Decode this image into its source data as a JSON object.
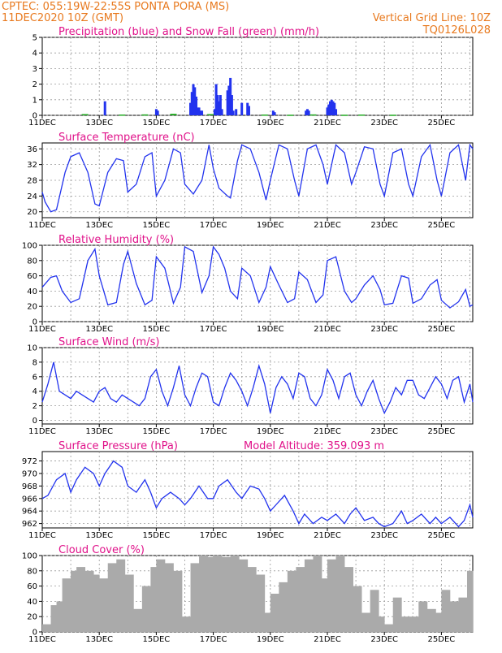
{
  "header": {
    "line1_left": "CPTEC:   055:19W-22:55S   PONTA PORA (MS)",
    "line2_left": "11DEC2020  10Z  (GMT)",
    "line1_right": "Vertical Grid Line: 10Z",
    "line2_right": "TQ0126L028"
  },
  "colors": {
    "series": "#2233ee",
    "snow": "#22aa22",
    "cloud": "#aaaaaa",
    "header": "#e8791e",
    "title": "#e0128a"
  },
  "x_axis": {
    "labels": [
      "11DEC",
      "13DEC",
      "15DEC",
      "17DEC",
      "19DEC",
      "21DEC",
      "23DEC",
      "25DEC"
    ],
    "label_days": [
      0,
      2,
      4,
      6,
      8,
      10,
      12,
      14
    ],
    "range_days": [
      0,
      15.1
    ]
  },
  "chart_data": [
    {
      "id": "precip",
      "type": "bar",
      "title": "Precipitation (blue) and Snow Fall (green) (mm/h)",
      "ylim": [
        0,
        5
      ],
      "yticks": [
        0,
        1,
        2,
        3,
        4,
        5
      ],
      "series": [
        {
          "name": "Precipitation",
          "x": [
            2.2,
            4.0,
            4.05,
            5.2,
            5.25,
            5.3,
            5.35,
            5.4,
            5.45,
            5.5,
            5.55,
            5.6,
            6.05,
            6.1,
            6.15,
            6.2,
            6.25,
            6.3,
            6.5,
            6.55,
            6.6,
            6.65,
            6.7,
            6.8,
            7.0,
            7.2,
            7.25,
            8.1,
            8.15,
            9.25,
            9.3,
            9.35,
            10.0,
            10.05,
            10.1,
            10.15,
            10.2,
            10.25,
            10.3
          ],
          "values": [
            0.9,
            0.4,
            0.3,
            0.8,
            1.5,
            2.0,
            1.8,
            1.2,
            0.5,
            0.5,
            0.3,
            0.3,
            0.4,
            2.0,
            1.3,
            0.9,
            1.3,
            0.4,
            1.6,
            1.9,
            2.4,
            1.3,
            0.3,
            0.4,
            0.8,
            0.8,
            0.6,
            0.3,
            0.2,
            0.3,
            0.4,
            0.3,
            0.5,
            0.7,
            0.9,
            1.0,
            0.9,
            0.8,
            0.4
          ]
        },
        {
          "name": "Snow Fall",
          "x": [
            1.5,
            2.8,
            3.6,
            4.6,
            5.9,
            7.8,
            8.7,
            9.5,
            10.6,
            11.2,
            12.3
          ],
          "values": [
            0.08,
            0.05,
            0.06,
            0.1,
            0.08,
            0.05,
            0.04,
            0.06,
            0.04,
            0.05,
            0.04
          ]
        }
      ]
    },
    {
      "id": "temp",
      "type": "line",
      "title": "Surface Temperature (nC)",
      "ylim": [
        18.5,
        37.5
      ],
      "yticks": [
        20,
        24,
        28,
        32,
        36
      ],
      "series": [
        {
          "name": "Temperature",
          "x": [
            0,
            0.1,
            0.3,
            0.5,
            0.8,
            1.0,
            1.3,
            1.6,
            1.85,
            2.0,
            2.3,
            2.6,
            2.85,
            3.0,
            3.3,
            3.6,
            3.85,
            4.0,
            4.3,
            4.6,
            4.85,
            5.0,
            5.3,
            5.6,
            5.85,
            6.0,
            6.2,
            6.5,
            6.6,
            6.85,
            7.0,
            7.3,
            7.6,
            7.85,
            8.0,
            8.3,
            8.6,
            8.85,
            9.0,
            9.3,
            9.6,
            9.85,
            10.0,
            10.3,
            10.6,
            10.85,
            11.0,
            11.3,
            11.6,
            11.85,
            12.0,
            12.3,
            12.6,
            12.85,
            13.0,
            13.3,
            13.6,
            13.85,
            14.0,
            14.3,
            14.6,
            14.85,
            15.0,
            15.1
          ],
          "values": [
            25,
            22.5,
            20,
            20.5,
            30,
            34,
            35,
            30,
            22,
            21.5,
            30,
            33.5,
            33,
            25,
            27,
            34,
            35,
            24,
            28,
            36,
            35,
            27,
            24.5,
            28,
            37,
            31,
            26,
            24,
            23.5,
            33,
            37,
            36,
            30,
            23,
            28,
            37,
            36,
            28,
            24,
            36,
            37,
            32,
            27,
            37,
            35,
            27,
            30,
            36.5,
            36,
            27,
            24,
            35,
            36,
            27,
            24,
            34,
            37,
            28,
            24,
            35,
            37,
            28,
            37,
            36
          ]
        }
      ]
    },
    {
      "id": "rh",
      "type": "line",
      "title": "Relative Humidity (%)",
      "ylim": [
        0,
        100
      ],
      "yticks": [
        0,
        20,
        40,
        60,
        80,
        100
      ],
      "series": [
        {
          "name": "Relative Humidity",
          "x": [
            0,
            0.3,
            0.5,
            0.7,
            1.0,
            1.3,
            1.6,
            1.85,
            2.0,
            2.3,
            2.6,
            2.85,
            3.0,
            3.3,
            3.6,
            3.85,
            4.0,
            4.3,
            4.6,
            4.85,
            5.0,
            5.3,
            5.6,
            5.85,
            6.0,
            6.2,
            6.4,
            6.6,
            6.85,
            7.0,
            7.3,
            7.6,
            7.85,
            8.0,
            8.3,
            8.6,
            8.85,
            9.0,
            9.3,
            9.6,
            9.85,
            10.0,
            10.3,
            10.6,
            10.85,
            11.0,
            11.3,
            11.6,
            11.85,
            12.0,
            12.3,
            12.6,
            12.85,
            13.0,
            13.3,
            13.6,
            13.85,
            14.0,
            14.3,
            14.6,
            14.85,
            15.0,
            15.1
          ],
          "values": [
            45,
            58,
            60,
            40,
            25,
            30,
            80,
            95,
            60,
            22,
            25,
            75,
            92,
            50,
            22,
            28,
            85,
            70,
            24,
            45,
            98,
            92,
            38,
            60,
            98,
            88,
            70,
            40,
            30,
            70,
            60,
            25,
            45,
            72,
            48,
            25,
            30,
            65,
            55,
            25,
            35,
            80,
            85,
            40,
            25,
            30,
            48,
            60,
            42,
            22,
            24,
            60,
            57,
            24,
            30,
            48,
            55,
            28,
            18,
            26,
            42,
            20,
            22
          ]
        }
      ]
    },
    {
      "id": "wind",
      "type": "line",
      "title": "Surface Wind (m/s)",
      "ylim": [
        -0.5,
        10
      ],
      "yticks": [
        0,
        2,
        4,
        6,
        8,
        10
      ],
      "series": [
        {
          "name": "Wind Speed",
          "x": [
            0,
            0.2,
            0.4,
            0.6,
            0.8,
            1.0,
            1.2,
            1.4,
            1.6,
            1.8,
            2.0,
            2.2,
            2.4,
            2.6,
            2.8,
            3.0,
            3.2,
            3.4,
            3.6,
            3.8,
            4.0,
            4.2,
            4.4,
            4.6,
            4.8,
            5.0,
            5.2,
            5.4,
            5.6,
            5.8,
            6.0,
            6.2,
            6.4,
            6.6,
            6.8,
            7.0,
            7.2,
            7.4,
            7.6,
            7.8,
            8.0,
            8.2,
            8.4,
            8.6,
            8.8,
            9.0,
            9.2,
            9.4,
            9.6,
            9.8,
            10.0,
            10.2,
            10.4,
            10.6,
            10.8,
            11.0,
            11.2,
            11.4,
            11.6,
            11.8,
            12.0,
            12.2,
            12.4,
            12.6,
            12.8,
            13.0,
            13.2,
            13.4,
            13.6,
            13.8,
            14.0,
            14.2,
            14.4,
            14.6,
            14.8,
            15.0,
            15.1
          ],
          "values": [
            2.5,
            5,
            8,
            4,
            3.5,
            3,
            4,
            3.5,
            3,
            2.5,
            4,
            4.5,
            3,
            2.5,
            3.5,
            3,
            2.5,
            2,
            3,
            6,
            7,
            4,
            2,
            4.5,
            7.5,
            3.5,
            2,
            4.5,
            6.5,
            6,
            2.5,
            2,
            4.5,
            6.5,
            5.5,
            4,
            2,
            4.5,
            7.5,
            5,
            1,
            4.5,
            6,
            5,
            3,
            6.5,
            6,
            3,
            2,
            3.5,
            7,
            5.5,
            3,
            6,
            6.5,
            3.5,
            2,
            4,
            5.5,
            3,
            1,
            2.5,
            4.5,
            3.5,
            5.5,
            5.5,
            3.5,
            3,
            4.5,
            6,
            5,
            3,
            5.5,
            6,
            2.5,
            5,
            2.5
          ]
        }
      ]
    },
    {
      "id": "pressure",
      "type": "line",
      "title": "Surface Pressure (hPa)",
      "annotation": "Model Altitude: 359.093 m",
      "ylim": [
        961.3,
        973.5
      ],
      "yticks": [
        962,
        964,
        966,
        968,
        970,
        972
      ],
      "series": [
        {
          "name": "Pressure",
          "x": [
            0,
            0.2,
            0.5,
            0.8,
            1.0,
            1.2,
            1.5,
            1.8,
            2.0,
            2.2,
            2.5,
            2.8,
            3.0,
            3.3,
            3.6,
            3.8,
            4.0,
            4.2,
            4.5,
            4.8,
            5.0,
            5.2,
            5.5,
            5.8,
            6.0,
            6.2,
            6.5,
            6.8,
            7.0,
            7.3,
            7.6,
            7.8,
            8.0,
            8.2,
            8.5,
            8.8,
            9.0,
            9.2,
            9.5,
            9.8,
            10.0,
            10.3,
            10.6,
            10.8,
            11.0,
            11.3,
            11.6,
            11.8,
            12.0,
            12.3,
            12.6,
            12.8,
            13.0,
            13.3,
            13.6,
            13.8,
            14.0,
            14.3,
            14.6,
            14.8,
            15.0,
            15.1
          ],
          "values": [
            966,
            966.5,
            969,
            970,
            967,
            969,
            971,
            970,
            968,
            970,
            972,
            971,
            968,
            967,
            969,
            967,
            964.5,
            966,
            967,
            966,
            965,
            966,
            968,
            966,
            966,
            968,
            969,
            967,
            966,
            968,
            967.5,
            966,
            964,
            965,
            966.5,
            964,
            962,
            963.5,
            962,
            963,
            962.5,
            963.5,
            962,
            963.5,
            964.5,
            962.5,
            963,
            962,
            961.5,
            962,
            964,
            962,
            962.5,
            963.5,
            962,
            963,
            962,
            963,
            961.5,
            962.5,
            965,
            963
          ]
        }
      ]
    },
    {
      "id": "cloud",
      "type": "area",
      "title": "Cloud Cover (%)",
      "ylim": [
        0,
        100
      ],
      "yticks": [
        0,
        20,
        40,
        60,
        80,
        100
      ],
      "series": [
        {
          "name": "Cloud Cover",
          "x": [
            0,
            0.3,
            0.5,
            0.7,
            1.0,
            1.2,
            1.5,
            1.8,
            2.0,
            2.3,
            2.6,
            2.9,
            3.2,
            3.5,
            3.8,
            4.0,
            4.3,
            4.6,
            4.9,
            5.2,
            5.5,
            5.8,
            6.0,
            6.3,
            6.6,
            6.9,
            7.2,
            7.5,
            7.8,
            8.0,
            8.3,
            8.6,
            8.9,
            9.2,
            9.5,
            9.8,
            10.0,
            10.3,
            10.6,
            10.9,
            11.2,
            11.5,
            11.8,
            12.0,
            12.3,
            12.6,
            12.9,
            13.2,
            13.5,
            13.8,
            14.0,
            14.3,
            14.6,
            14.9,
            15.1
          ],
          "values": [
            10,
            35,
            40,
            70,
            80,
            85,
            80,
            75,
            70,
            90,
            95,
            75,
            30,
            60,
            85,
            95,
            90,
            80,
            20,
            90,
            100,
            98,
            100,
            98,
            100,
            95,
            85,
            75,
            25,
            50,
            65,
            80,
            85,
            95,
            100,
            70,
            95,
            100,
            85,
            60,
            25,
            55,
            20,
            10,
            45,
            20,
            20,
            40,
            30,
            25,
            55,
            40,
            45,
            80,
            90
          ]
        }
      ]
    }
  ]
}
